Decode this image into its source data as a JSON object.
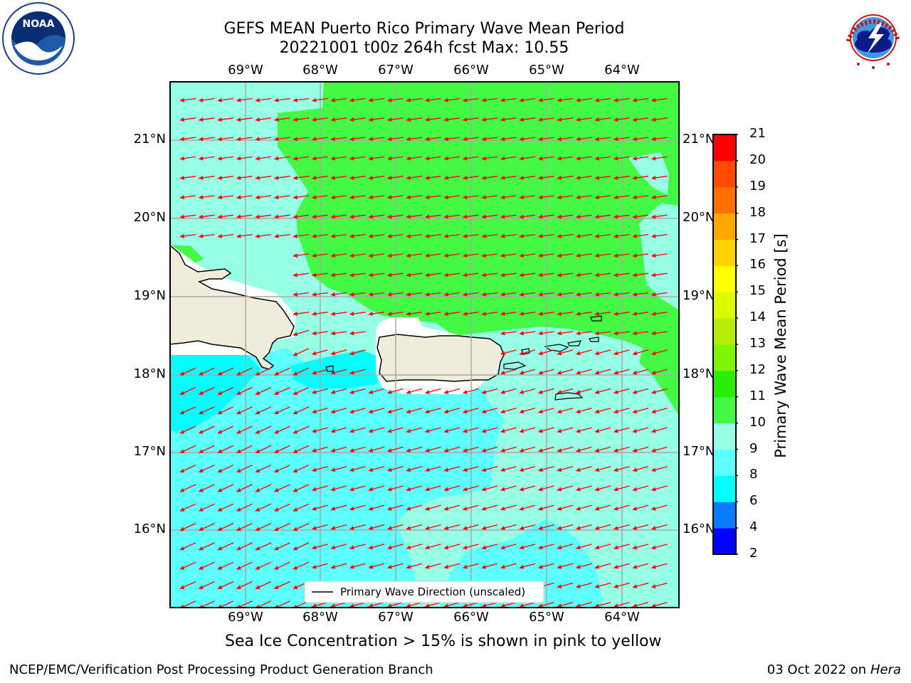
{
  "header": {
    "title_line1": "GEFS MEAN Puerto Rico Primary Wave Mean Period",
    "title_line2": "20221001 t00z 264h fcst   Max: 10.55"
  },
  "logos": {
    "noaa_text": "NOAA",
    "nws_text": "NATIONAL WEATHER SERVICE"
  },
  "map": {
    "lon_labels": [
      "69°W",
      "68°W",
      "67°W",
      "66°W",
      "65°W",
      "64°W"
    ],
    "lat_labels": [
      "21°N",
      "20°N",
      "19°N",
      "18°N",
      "17°N",
      "16°N"
    ],
    "legend_label": "Primary Wave Direction (unscaled)",
    "arrow_color": "#ff0000",
    "ocean_colors": {
      "band_6_8": "#00ffff",
      "band_8_9": "#5effff",
      "band_9_10": "#96ffe6",
      "band_10_11": "#43f943"
    },
    "land_color": "#efecdc"
  },
  "colorbar": {
    "label": "Primary Wave Mean Period [s]",
    "ticks": [
      "2",
      "4",
      "6",
      "8",
      "9",
      "10",
      "11",
      "12",
      "13",
      "14",
      "15",
      "16",
      "17",
      "18",
      "19",
      "20",
      "21"
    ],
    "colors": [
      "#0000ff",
      "#0a7bff",
      "#00ffff",
      "#5effff",
      "#96ffe6",
      "#43f943",
      "#26ee06",
      "#80f406",
      "#b6ec05",
      "#dcf900",
      "#ffff00",
      "#ffd200",
      "#ffa800",
      "#ff7000",
      "#ff4a00",
      "#ff0000"
    ]
  },
  "notes": {
    "sea_ice": "Sea Ice Concentration > 15% is shown in pink to yellow"
  },
  "footer": {
    "left": "NCEP/EMC/Verification Post Processing Product Generation Branch",
    "date_prefix": "03 Oct 2022 on ",
    "machine": "Hera"
  }
}
